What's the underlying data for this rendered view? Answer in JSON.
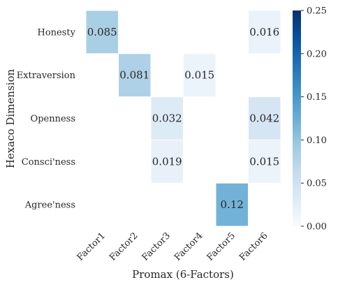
{
  "chart_data": {
    "type": "heatmap",
    "xlabel": "Promax (6-Factors)",
    "ylabel": "Hexaco Dimension",
    "x_categories": [
      "Factor1",
      "Factor2",
      "Factor3",
      "Factor4",
      "Factor5",
      "Factor6"
    ],
    "y_categories": [
      "Honesty",
      "Extraversion",
      "Openness",
      "Consci'ness",
      "Agree'ness"
    ],
    "cells": [
      {
        "row": 0,
        "col": 0,
        "value": 0.085,
        "label": "0.085"
      },
      {
        "row": 0,
        "col": 5,
        "value": 0.016,
        "label": "0.016"
      },
      {
        "row": 1,
        "col": 1,
        "value": 0.081,
        "label": "0.081"
      },
      {
        "row": 1,
        "col": 3,
        "value": 0.015,
        "label": "0.015"
      },
      {
        "row": 2,
        "col": 2,
        "value": 0.032,
        "label": "0.032"
      },
      {
        "row": 2,
        "col": 5,
        "value": 0.042,
        "label": "0.042"
      },
      {
        "row": 3,
        "col": 2,
        "value": 0.019,
        "label": "0.019"
      },
      {
        "row": 3,
        "col": 5,
        "value": 0.015,
        "label": "0.015"
      },
      {
        "row": 4,
        "col": 4,
        "value": 0.12,
        "label": "0.12"
      }
    ],
    "colorbar": {
      "min": 0.0,
      "max": 0.25,
      "ticks": [
        "0.00",
        "0.05",
        "0.10",
        "0.15",
        "0.20",
        "0.25"
      ],
      "colormap": "Blues"
    },
    "cell_border_color": "#ffffff"
  }
}
